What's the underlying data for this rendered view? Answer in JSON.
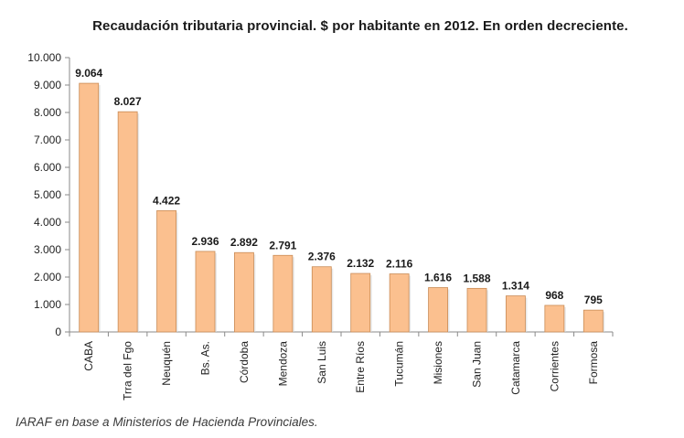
{
  "chart_data": {
    "type": "bar",
    "title": "Recaudación tributaria provincial. $ por habitante en 2012. En orden decreciente.",
    "categories": [
      "CABA",
      "Trra del Fgo",
      "Neuquén",
      "Bs. As.",
      "Córdoba",
      "Mendoza",
      "San Luis",
      "Entre Ríos",
      "Tucumán",
      "Misiones",
      "San Juan",
      "Catamarca",
      "Corrientes",
      "Formosa"
    ],
    "values": [
      9064,
      8027,
      4422,
      2936,
      2892,
      2791,
      2376,
      2132,
      2116,
      1616,
      1588,
      1314,
      968,
      795
    ],
    "data_labels": [
      "9.064",
      "8.027",
      "4.422",
      "2.936",
      "2.892",
      "2.791",
      "2.376",
      "2.132",
      "2.116",
      "1.616",
      "1.588",
      "1.314",
      "968",
      "795"
    ],
    "yticks": [
      0,
      1000,
      2000,
      3000,
      4000,
      5000,
      6000,
      7000,
      8000,
      9000,
      10000
    ],
    "ytick_labels": [
      "0",
      "1.000",
      "2.000",
      "3.000",
      "4.000",
      "5.000",
      "6.000",
      "7.000",
      "8.000",
      "9.000",
      "10.000"
    ],
    "ylim": [
      0,
      10000
    ],
    "grid": false,
    "legend": "none",
    "colors": {
      "bar_fill": "#FBC08F",
      "bar_stroke": "#C98B55",
      "axis": "#8a8a8a"
    }
  },
  "source_note": "IARAF en base a Ministerios de Hacienda Provinciales."
}
